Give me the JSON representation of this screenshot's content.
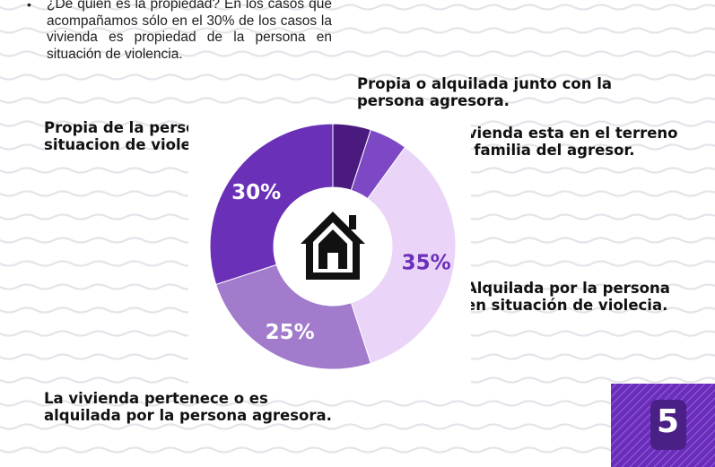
{
  "bullet_text": "¿De quién es la propiedad? En los casos que acompañamos sólo en el 30% de los casos la vivienda es propiedad de la persona en situación de violencia.",
  "labels": {
    "propia_agresora": [
      "Propia o alquilada junto con la",
      "persona agresora."
    ],
    "terreno_agresor": [
      "La vivienda esta en el terreno",
      "de la familia del agresor."
    ],
    "propia_persona": [
      "Propia de la persona en",
      "situacion de violencia."
    ],
    "alquilada_persona": [
      "Alquilada por la persona",
      "en situación de violecia."
    ],
    "pertenece_agresora": [
      "La vivienda pertenece o es",
      "alquilada por la persona agresora."
    ]
  },
  "page_number": "5",
  "icon": "house-icon",
  "colors": {
    "slice_dark": "#4a1a7e",
    "slice_mid": "#7c48c4",
    "slice_light": "#ead4f8",
    "slice_med": "#a27bcc",
    "slice_main": "#6a30b8",
    "badge": "#6a2dbb",
    "wave": "#e4e4ea"
  },
  "chart_data": {
    "type": "pie",
    "categories": [
      "Propia o alquilada junto con la persona agresora.",
      "La vivienda esta en el terreno de la familia del agresor.",
      "Alquilada por la persona en situación de violecia.",
      "La vivienda pertenece o es alquilada por la persona agresora.",
      "Propia de la persona en situacion de violencia."
    ],
    "values": [
      5,
      5,
      35,
      25,
      30
    ],
    "data_labels": [
      "",
      "",
      "35%",
      "25%",
      "30%"
    ],
    "colors": [
      "#4a1a7e",
      "#7c48c4",
      "#ead4f8",
      "#a27bcc",
      "#6a30b8"
    ],
    "hole": "donut",
    "start_angle_deg": 0
  }
}
